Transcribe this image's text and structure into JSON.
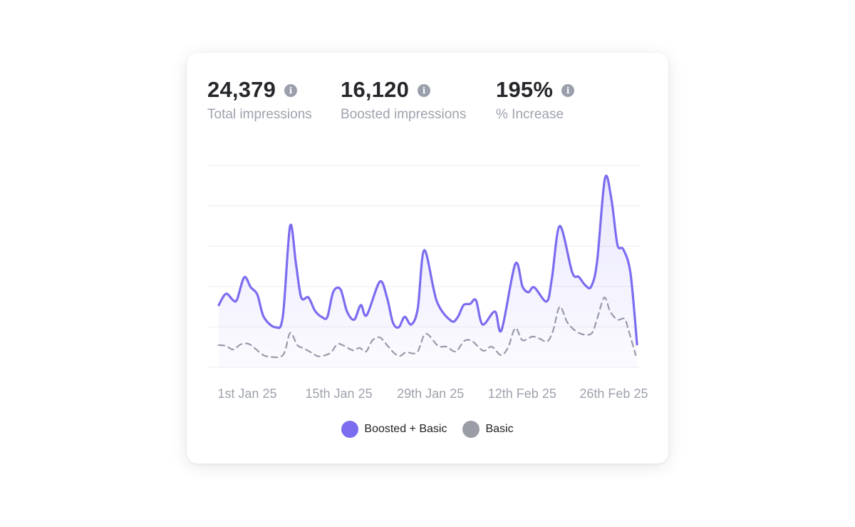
{
  "stats": [
    {
      "value": "24,379",
      "label": "Total impressions",
      "icon": "info-icon"
    },
    {
      "value": "16,120",
      "label": "Boosted impressions",
      "icon": "info-icon"
    },
    {
      "value": "195%",
      "label": "% Increase",
      "icon": "info-icon"
    }
  ],
  "info_glyph": "i",
  "chart_data": {
    "type": "line",
    "title": "",
    "xlabel": "",
    "ylabel": "",
    "x_unit": "day index (0 = ~27 Dec 24)",
    "xlim": [
      0,
      64
    ],
    "ylim": [
      0,
      500
    ],
    "grid": true,
    "gridlines": [
      0,
      100,
      200,
      300,
      400,
      500
    ],
    "x_ticks": [
      {
        "x": 5,
        "label": "1st Jan 25"
      },
      {
        "x": 19,
        "label": "15th Jan 25"
      },
      {
        "x": 33,
        "label": "29th Jan 25"
      },
      {
        "x": 47,
        "label": "12th Feb 25"
      },
      {
        "x": 61,
        "label": "26th Feb 25"
      }
    ],
    "legend_position": "bottom-center",
    "series": [
      {
        "name": "Boosted + Basic",
        "color": "#7b6cf0",
        "style": "solid",
        "fill": true,
        "points": [
          [
            0,
            154
          ],
          [
            1.1,
            182
          ],
          [
            2.2,
            166
          ],
          [
            2.8,
            168
          ],
          [
            3.9,
            223
          ],
          [
            4.9,
            198
          ],
          [
            5.9,
            180
          ],
          [
            6.9,
            124
          ],
          [
            8.7,
            99
          ],
          [
            9.8,
            127
          ],
          [
            10.9,
            350
          ],
          [
            11.8,
            256
          ],
          [
            12.6,
            173
          ],
          [
            13.7,
            173
          ],
          [
            14.7,
            140
          ],
          [
            15.8,
            124
          ],
          [
            16.6,
            125
          ],
          [
            17.5,
            187
          ],
          [
            18.6,
            193
          ],
          [
            19.6,
            138
          ],
          [
            20.7,
            118
          ],
          [
            21.7,
            154
          ],
          [
            22.6,
            129
          ],
          [
            24.6,
            212
          ],
          [
            25.7,
            173
          ],
          [
            26.6,
            111
          ],
          [
            27.5,
            99
          ],
          [
            28.4,
            125
          ],
          [
            29.4,
            106
          ],
          [
            30.4,
            145
          ],
          [
            31.4,
            290
          ],
          [
            33.3,
            164
          ],
          [
            35.5,
            115
          ],
          [
            36.5,
            124
          ],
          [
            37.4,
            154
          ],
          [
            38.4,
            157
          ],
          [
            39.3,
            166
          ],
          [
            40.3,
            106
          ],
          [
            42.2,
            138
          ],
          [
            43.2,
            92
          ],
          [
            45.3,
            256
          ],
          [
            46.4,
            200
          ],
          [
            47.3,
            186
          ],
          [
            48.2,
            198
          ],
          [
            50.1,
            163
          ],
          [
            50.9,
            221
          ],
          [
            52.1,
            350
          ],
          [
            54.0,
            235
          ],
          [
            55.0,
            224
          ],
          [
            56.0,
            203
          ],
          [
            56.9,
            200
          ],
          [
            57.8,
            262
          ],
          [
            59.0,
            468
          ],
          [
            60.0,
            415
          ],
          [
            60.9,
            304
          ],
          [
            61.8,
            292
          ],
          [
            62.9,
            233
          ],
          [
            63.9,
            57
          ]
        ]
      },
      {
        "name": "Basic",
        "color": "#9a9ca6",
        "style": "dashed",
        "fill": false,
        "points": [
          [
            0,
            55
          ],
          [
            1.1,
            53
          ],
          [
            2.2,
            44
          ],
          [
            3.4,
            57
          ],
          [
            4.7,
            57
          ],
          [
            6.4,
            35
          ],
          [
            7.4,
            27
          ],
          [
            9.8,
            30
          ],
          [
            10.9,
            85
          ],
          [
            12.0,
            55
          ],
          [
            13.1,
            46
          ],
          [
            14.3,
            35
          ],
          [
            15.3,
            27
          ],
          [
            17.0,
            35
          ],
          [
            18.1,
            57
          ],
          [
            18.9,
            55
          ],
          [
            20.5,
            42
          ],
          [
            21.5,
            48
          ],
          [
            22.5,
            39
          ],
          [
            23.5,
            67
          ],
          [
            24.6,
            74
          ],
          [
            25.7,
            55
          ],
          [
            26.8,
            35
          ],
          [
            27.7,
            28
          ],
          [
            28.6,
            37
          ],
          [
            30.3,
            37
          ],
          [
            31.6,
            83
          ],
          [
            33.5,
            53
          ],
          [
            34.8,
            51
          ],
          [
            36.2,
            39
          ],
          [
            37.5,
            65
          ],
          [
            38.7,
            65
          ],
          [
            40.4,
            41
          ],
          [
            41.7,
            51
          ],
          [
            43.1,
            30
          ],
          [
            44.2,
            49
          ],
          [
            45.3,
            97
          ],
          [
            46.4,
            67
          ],
          [
            47.9,
            76
          ],
          [
            49.0,
            71
          ],
          [
            50.2,
            64
          ],
          [
            51.1,
            92
          ],
          [
            52.1,
            150
          ],
          [
            53.3,
            110
          ],
          [
            55.0,
            85
          ],
          [
            56.9,
            83
          ],
          [
            57.8,
            120
          ],
          [
            58.9,
            173
          ],
          [
            59.8,
            138
          ],
          [
            60.9,
            118
          ],
          [
            62.0,
            120
          ],
          [
            62.6,
            92
          ],
          [
            63.7,
            30
          ]
        ]
      }
    ]
  }
}
